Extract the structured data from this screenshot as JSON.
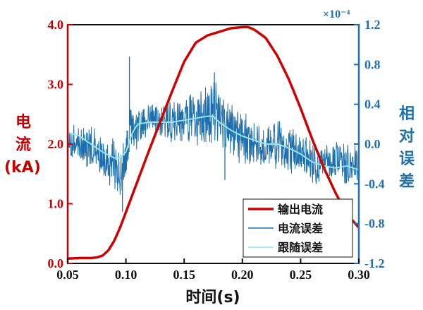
{
  "chart_data": {
    "type": "line",
    "xlabel": "时间(s)",
    "ylabel_left": "电流(kA)",
    "ylabel_left_lines": [
      "电",
      "流",
      "(kA)"
    ],
    "ylabel_right": "相对误差",
    "ylabel_right_lines": [
      "相",
      "对",
      "误",
      "差"
    ],
    "xlim": [
      0.05,
      0.3
    ],
    "ylim_left": [
      0.0,
      4.0
    ],
    "ylim_right": [
      -1.2,
      1.2
    ],
    "right_multiplier": "×10⁻⁴",
    "xticks": [
      "0.05",
      "0.10",
      "0.15",
      "0.20",
      "0.25",
      "0.30"
    ],
    "xtick_values": [
      0.05,
      0.1,
      0.15,
      0.2,
      0.25,
      0.3
    ],
    "yticks_left": [
      "0.0",
      "1.0",
      "2.0",
      "3.0",
      "4.0"
    ],
    "ytick_values_left": [
      0,
      1,
      2,
      3,
      4
    ],
    "yticks_right": [
      "-1.2",
      "-0.8",
      "-0.4",
      "0.0",
      "0.4",
      "0.8",
      "1.2"
    ],
    "ytick_values_right": [
      -1.2,
      -0.8,
      -0.4,
      0.0,
      0.4,
      0.8,
      1.2
    ],
    "legend_position": "bottom-right",
    "colors": {
      "output": "#cc0000",
      "error": "#1f6fae",
      "tracking": "#8fe8ea",
      "left_axis": "#c00000",
      "right_axis": "#1f6fae"
    },
    "series": [
      {
        "name": "输出电流",
        "axis": "left",
        "x": [
          0.05,
          0.06,
          0.07,
          0.075,
          0.08,
          0.085,
          0.09,
          0.095,
          0.1,
          0.11,
          0.12,
          0.13,
          0.14,
          0.15,
          0.16,
          0.17,
          0.18,
          0.19,
          0.2,
          0.205,
          0.21,
          0.22,
          0.23,
          0.24,
          0.25,
          0.26,
          0.27,
          0.28,
          0.29,
          0.3
        ],
        "y": [
          0.08,
          0.09,
          0.09,
          0.1,
          0.13,
          0.22,
          0.38,
          0.6,
          0.86,
          1.38,
          1.9,
          2.4,
          2.9,
          3.38,
          3.7,
          3.82,
          3.88,
          3.94,
          3.96,
          3.96,
          3.92,
          3.78,
          3.48,
          3.08,
          2.6,
          2.08,
          1.6,
          1.18,
          0.82,
          0.6
        ]
      },
      {
        "name": "电流误差",
        "axis": "right",
        "x": [
          0.05,
          0.06,
          0.07,
          0.08,
          0.09,
          0.095,
          0.1,
          0.103,
          0.11,
          0.12,
          0.13,
          0.14,
          0.15,
          0.16,
          0.17,
          0.175,
          0.18,
          0.19,
          0.2,
          0.21,
          0.22,
          0.23,
          0.24,
          0.25,
          0.26,
          0.27,
          0.28,
          0.29,
          0.3
        ],
        "y": [
          0.06,
          0.02,
          -0.04,
          -0.12,
          -0.22,
          -0.28,
          -0.18,
          0.2,
          0.18,
          0.24,
          0.22,
          0.2,
          0.22,
          0.28,
          0.3,
          0.32,
          0.26,
          0.12,
          0.06,
          0.02,
          0.0,
          -0.02,
          -0.06,
          -0.12,
          -0.18,
          -0.2,
          -0.16,
          -0.2,
          -0.18
        ],
        "noise_amplitude": [
          0.22,
          0.22,
          0.22,
          0.25,
          0.3,
          0.3,
          0.32,
          0.3,
          0.25,
          0.22,
          0.22,
          0.25,
          0.28,
          0.32,
          0.36,
          0.4,
          0.35,
          0.32,
          0.3,
          0.28,
          0.26,
          0.26,
          0.25,
          0.24,
          0.24,
          0.24,
          0.22,
          0.22,
          0.22
        ],
        "peaks": [
          {
            "x": 0.103,
            "y": 0.88
          },
          {
            "x": 0.176,
            "y": 0.72
          },
          {
            "x": 0.097,
            "y": -0.68
          },
          {
            "x": 0.185,
            "y": -0.36
          }
        ]
      },
      {
        "name": "跟随误差",
        "axis": "right",
        "x": [
          0.05,
          0.06,
          0.07,
          0.08,
          0.09,
          0.095,
          0.1,
          0.105,
          0.11,
          0.12,
          0.13,
          0.14,
          0.15,
          0.16,
          0.17,
          0.175,
          0.18,
          0.19,
          0.2,
          0.21,
          0.22,
          0.23,
          0.24,
          0.25,
          0.26,
          0.27,
          0.28,
          0.29,
          0.3
        ],
        "y": [
          0.12,
          0.08,
          0.0,
          -0.08,
          -0.14,
          -0.14,
          -0.08,
          0.1,
          0.2,
          0.22,
          0.22,
          0.22,
          0.24,
          0.26,
          0.28,
          0.28,
          0.22,
          0.14,
          0.08,
          0.04,
          0.0,
          0.0,
          -0.04,
          -0.1,
          -0.18,
          -0.22,
          -0.24,
          -0.22,
          -0.26
        ]
      }
    ]
  }
}
